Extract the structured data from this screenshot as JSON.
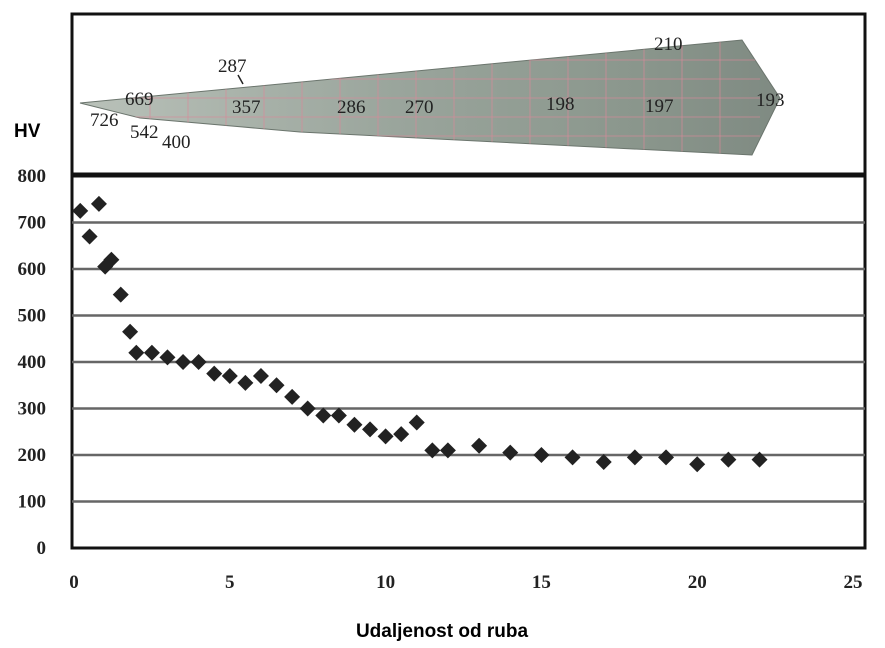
{
  "chart_data": {
    "type": "scatter",
    "ylabel": "HV",
    "xlabel": "Udaljenost od ruba",
    "xlim": [
      0,
      25
    ],
    "ylim": [
      0,
      800
    ],
    "xticks": [
      "0",
      "5",
      "10",
      "15",
      "20",
      "25"
    ],
    "yticks": [
      "0",
      "100",
      "200",
      "300",
      "400",
      "500",
      "600",
      "700",
      "800"
    ],
    "grid": "horizontal",
    "points": [
      {
        "x": 0.2,
        "y": 725
      },
      {
        "x": 0.5,
        "y": 670
      },
      {
        "x": 0.8,
        "y": 740
      },
      {
        "x": 1.0,
        "y": 605
      },
      {
        "x": 1.2,
        "y": 620
      },
      {
        "x": 1.5,
        "y": 545
      },
      {
        "x": 1.8,
        "y": 465
      },
      {
        "x": 2.0,
        "y": 420
      },
      {
        "x": 2.5,
        "y": 420
      },
      {
        "x": 3.0,
        "y": 410
      },
      {
        "x": 3.5,
        "y": 400
      },
      {
        "x": 4.0,
        "y": 400
      },
      {
        "x": 4.5,
        "y": 375
      },
      {
        "x": 5.0,
        "y": 370
      },
      {
        "x": 5.5,
        "y": 355
      },
      {
        "x": 6.0,
        "y": 370
      },
      {
        "x": 6.5,
        "y": 350
      },
      {
        "x": 7.0,
        "y": 325
      },
      {
        "x": 7.5,
        "y": 300
      },
      {
        "x": 8.0,
        "y": 285
      },
      {
        "x": 8.5,
        "y": 285
      },
      {
        "x": 9.0,
        "y": 265
      },
      {
        "x": 9.5,
        "y": 255
      },
      {
        "x": 10.0,
        "y": 240
      },
      {
        "x": 10.5,
        "y": 245
      },
      {
        "x": 11.0,
        "y": 270
      },
      {
        "x": 11.5,
        "y": 210
      },
      {
        "x": 12.0,
        "y": 210
      },
      {
        "x": 13.0,
        "y": 220
      },
      {
        "x": 14.0,
        "y": 205
      },
      {
        "x": 15.0,
        "y": 200
      },
      {
        "x": 16.0,
        "y": 195
      },
      {
        "x": 17.0,
        "y": 185
      },
      {
        "x": 18.0,
        "y": 195
      },
      {
        "x": 19.0,
        "y": 195
      },
      {
        "x": 20.0,
        "y": 180
      },
      {
        "x": 21.0,
        "y": 190
      },
      {
        "x": 22.0,
        "y": 190
      }
    ],
    "marker_color": "#222222",
    "gridline_color": "#666666"
  },
  "blade_image": {
    "labels": [
      "287",
      "669",
      "726",
      "542",
      "400",
      "357",
      "286",
      "270",
      "198",
      "197",
      "210",
      "193"
    ],
    "fill_color": "#9aa59c",
    "grid_color": "#d98a9a"
  }
}
